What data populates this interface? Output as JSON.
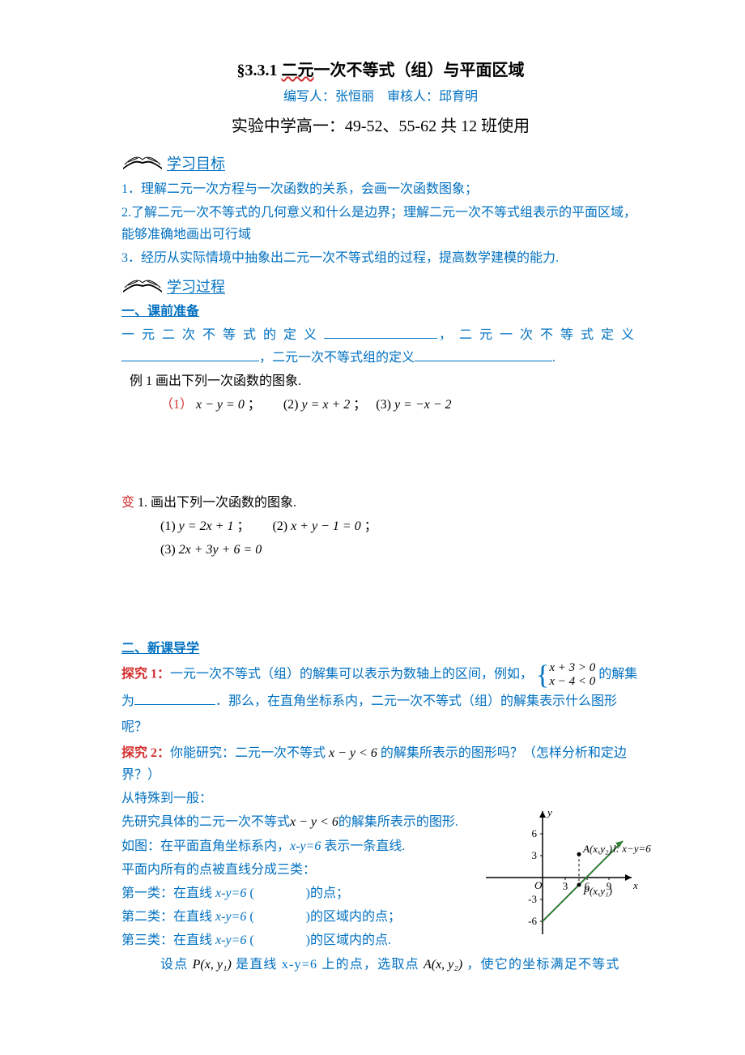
{
  "title": {
    "section_num": "§3.3.1",
    "underline_part": "二元",
    "rest": "一次不等式（组）与平面区域"
  },
  "authors": "编写人：张恒丽　审核人：邱育明",
  "subtitle": "实验中学高一：49-52、55-62 共 12 班使用",
  "section_objectives": "学习目标",
  "objectives": [
    "1．理解二元一次方程与一次函数的关系，会画一次函数图象；",
    "2.了解二元一次不等式的几何意义和什么是边界；理解二元一次不等式组表示的平面区域，能够准确地画出可行域",
    "3．经历从实际情境中抽象出二元一次不等式组的过程，提高数学建模的能力."
  ],
  "section_process": "学习过程",
  "prep_header": "一、课前准备",
  "defs": {
    "lead1": "一元二次不等式的定义",
    "lead2": "，二元一次不等式定义",
    "lead3": "，二元一次不等式组的定义"
  },
  "example1_title": "例 1 画出下列一次函数的图象.",
  "example1_items": {
    "i1_label": "（1）",
    "i1_eq": "x − y = 0",
    "i2_label": "(2)",
    "i2_eq": "y = x + 2",
    "i3_label": "(3)",
    "i3_eq": "y = −x − 2"
  },
  "variation_title": "变",
  "variation_rest": " 1. 画出下列一次函数的图象.",
  "var_items": {
    "i1_label": "(1)",
    "i1_eq": "y = 2x + 1",
    "i2_label": "(2)",
    "i2_eq": "x + y − 1 = 0",
    "i3_label": "(3)",
    "i3_eq": "2x + 3y + 6 = 0"
  },
  "section2_header": "二、新课导学",
  "explore1": {
    "label": "探究 1：",
    "text_a": "一元一次不等式（组）的解集可以表示为数轴上的区间，例如，",
    "sys_top": "x + 3 > 0",
    "sys_bot": "x − 4 < 0",
    "text_b": "的解集为",
    "text_c": "．那么，在直角坐标系内，二元一次不等式（组）的解集表示什么图形呢？"
  },
  "explore2": {
    "label": "探究 2：",
    "text_a": "你能研究：二元一次不等式",
    "eq_a": "x − y < 6",
    "text_b": "的解集所表示的图形吗？（怎样分析和定边界？）"
  },
  "general_header": "从特殊到一般：",
  "body_lines": {
    "l1_a": "先研究具体的二元一次不等式",
    "l1_eq": "x − y < 6",
    "l1_b": "的解集所表示的图形.",
    "l2": "如图：在平面直角坐标系内，",
    "l2_eq": "x-y=6",
    "l2_b": " 表示一条直线.",
    "l3": "平面内所有的点被直线分成三类：",
    "cat1_a": "第一类：在直线",
    "cat1_eq": "x-y=6",
    "cat1_b": "(　　　　)的点；",
    "cat2_a": "第二类：在直线",
    "cat2_eq": "x-y=6",
    "cat2_b": "(　　　　)的区域内的点；",
    "cat3_a": "第三类：在直线",
    "cat3_eq": "x-y=6",
    "cat3_b": "(　　　　)的区域内的点.",
    "final_a": "设点",
    "final_p": "P(x, y₁)",
    "final_b": " 是直线 x-y=6 上的点，选取点 ",
    "final_q": "A(x, y₂)",
    "final_c": "，使它的坐标满足不等式"
  },
  "graph": {
    "y_ticks": [
      6,
      3,
      -3,
      -6
    ],
    "x_ticks": [
      3,
      6,
      9
    ],
    "x_tick_positions": [
      108,
      135,
      162
    ],
    "point_A": "A(x,y₂)",
    "point_P": "P(x,y₁)",
    "line_label": "l: x−y=6",
    "origin_label": "O",
    "x_label": "x",
    "y_label": "y",
    "axis_color": "#000000",
    "line_color": "#2e7d32",
    "line_width": 2,
    "dash_color": "#000000",
    "font_size": 13
  },
  "colors": {
    "blue": "#0070c0",
    "red": "#d32f2f",
    "black": "#000000",
    "green": "#2e7d32"
  }
}
